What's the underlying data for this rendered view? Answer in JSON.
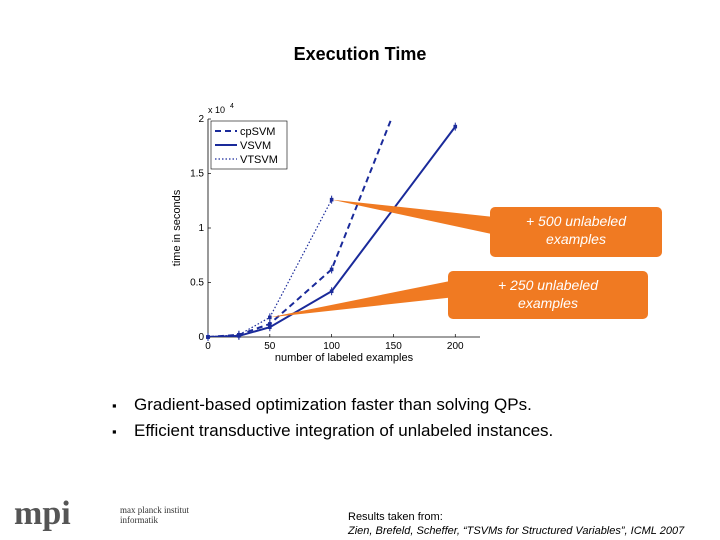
{
  "slide": {
    "title": "Execution Time"
  },
  "bullets": [
    "Gradient-based optimization faster than solving QPs.",
    "Efficient transductive integration of unlabeled instances."
  ],
  "logo": {
    "mark": "mpi",
    "line1": "max planck institut",
    "line2": "informatik"
  },
  "source": {
    "line1": "Results taken from:",
    "line2": "Zien, Brefeld, Scheffer, “TSVMs for Structured Variables”, ICML 2007"
  },
  "colors": {
    "series": "#1a2a9a",
    "callout_fill": "#f07a22",
    "callout_text": "#ffffff"
  },
  "chart_data": {
    "type": "line",
    "xlabel": "number of labeled examples",
    "ylabel": "time in seconds",
    "y_exponent_label": "x 10",
    "y_exponent_power": "4",
    "xlim": [
      0,
      220
    ],
    "ylim": [
      0,
      2.0
    ],
    "x_ticks": [
      0,
      50,
      100,
      150,
      200
    ],
    "y_ticks": [
      0,
      0.5,
      1,
      1.5,
      2
    ],
    "y_tick_labels": [
      "0",
      "0.5",
      "1",
      "1.5",
      "2"
    ],
    "legend_position": "top-left",
    "series": [
      {
        "name": "cpSVM",
        "style": "dashed",
        "x": [
          0,
          25,
          50,
          100,
          150
        ],
        "y": [
          0,
          0.02,
          0.12,
          0.62,
          2.05
        ]
      },
      {
        "name": "VSVM",
        "style": "solid",
        "x": [
          0,
          25,
          50,
          100,
          200
        ],
        "y": [
          0,
          0.01,
          0.09,
          0.42,
          1.93
        ]
      },
      {
        "name": "VTSVM",
        "style": "dotted",
        "x": [
          0,
          25,
          50,
          100
        ],
        "y": [
          0,
          0.02,
          0.18,
          1.26
        ]
      }
    ],
    "annotations": [
      {
        "text": "+ 500 unlabeled examples",
        "x": 100,
        "y": 1.26
      },
      {
        "text": "+ 250 unlabeled examples",
        "x": 50,
        "y": 0.18
      }
    ]
  }
}
